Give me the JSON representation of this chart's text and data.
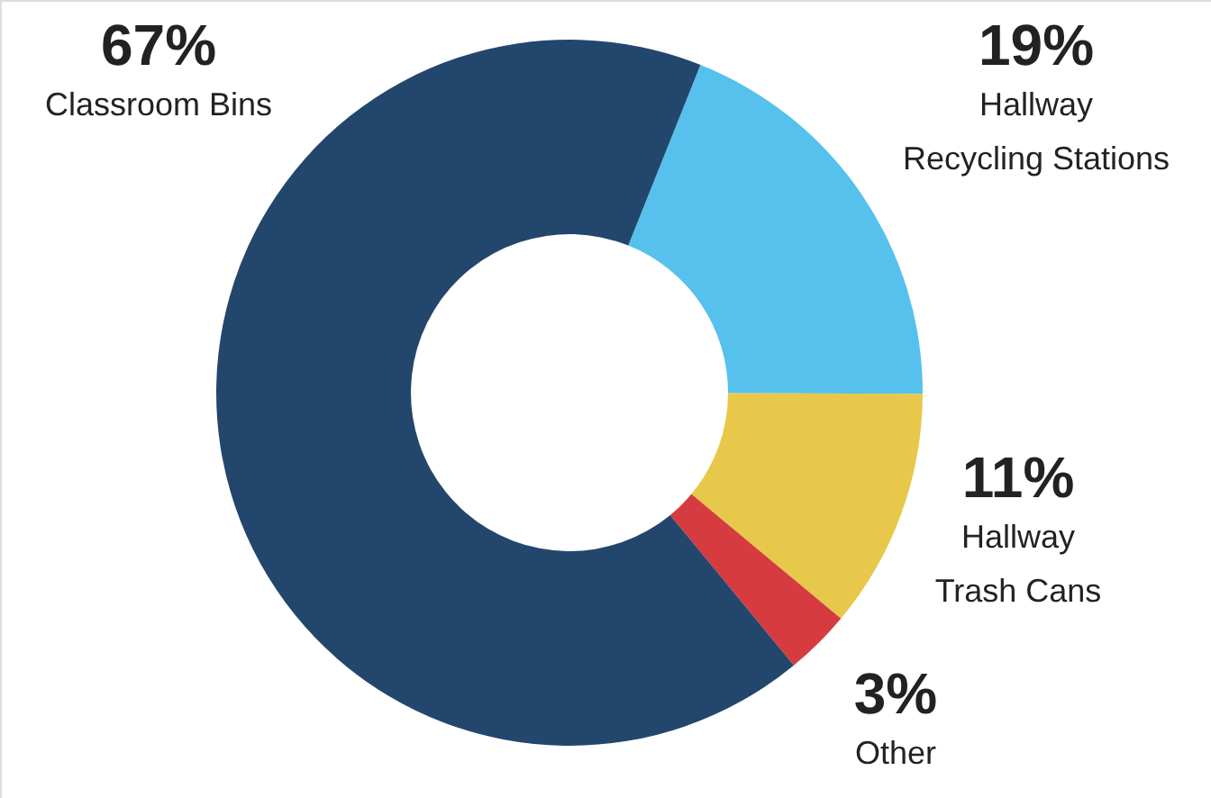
{
  "chart_data": {
    "type": "donut",
    "categories": [
      "Hallway\nRecycling Stations",
      "Hallway\nTrash Cans",
      "Other",
      "Classroom Bins"
    ],
    "values": [
      19,
      11,
      3,
      67
    ],
    "value_labels": [
      "19%",
      "11%",
      "3%",
      "67%"
    ],
    "colors": [
      "#56c1ec",
      "#e8c84b",
      "#d63b40",
      "#23466d"
    ]
  }
}
